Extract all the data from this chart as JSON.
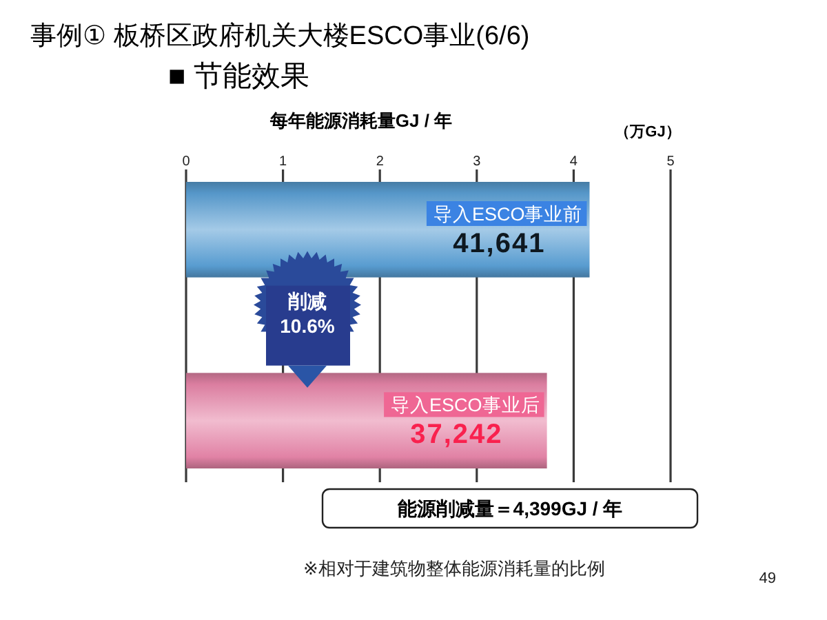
{
  "chart_data": {
    "type": "bar",
    "orientation": "horizontal",
    "title": "事例①  板桥区政府机关大楼ESCO事业(6/6)",
    "subtitle": "■ 节能效果",
    "xlabel": "（万GJ）",
    "categories": [
      "导入ESCO事业前",
      "导入ESCO事业后"
    ],
    "values": [
      4.1641,
      3.7242
    ],
    "colors": [
      "#5a9fd4",
      "#e685a8"
    ],
    "xlim": [
      0,
      5
    ],
    "xticks": [
      0,
      1,
      2,
      3,
      4,
      5
    ],
    "grid": "x",
    "annotations": [
      "每年能源消耗量GJ / 年",
      {
        "text": "41,641",
        "x": 4.1641,
        "y": "导入ESCO事业前"
      },
      "削减\n10.6%",
      {
        "text": "37,242",
        "x": 3.7242,
        "y": "导入ESCO事业后"
      },
      "能源削减量＝4,399GJ / 年",
      "※相对于建筑物整体能源消耗量的比例",
      "49"
    ]
  }
}
